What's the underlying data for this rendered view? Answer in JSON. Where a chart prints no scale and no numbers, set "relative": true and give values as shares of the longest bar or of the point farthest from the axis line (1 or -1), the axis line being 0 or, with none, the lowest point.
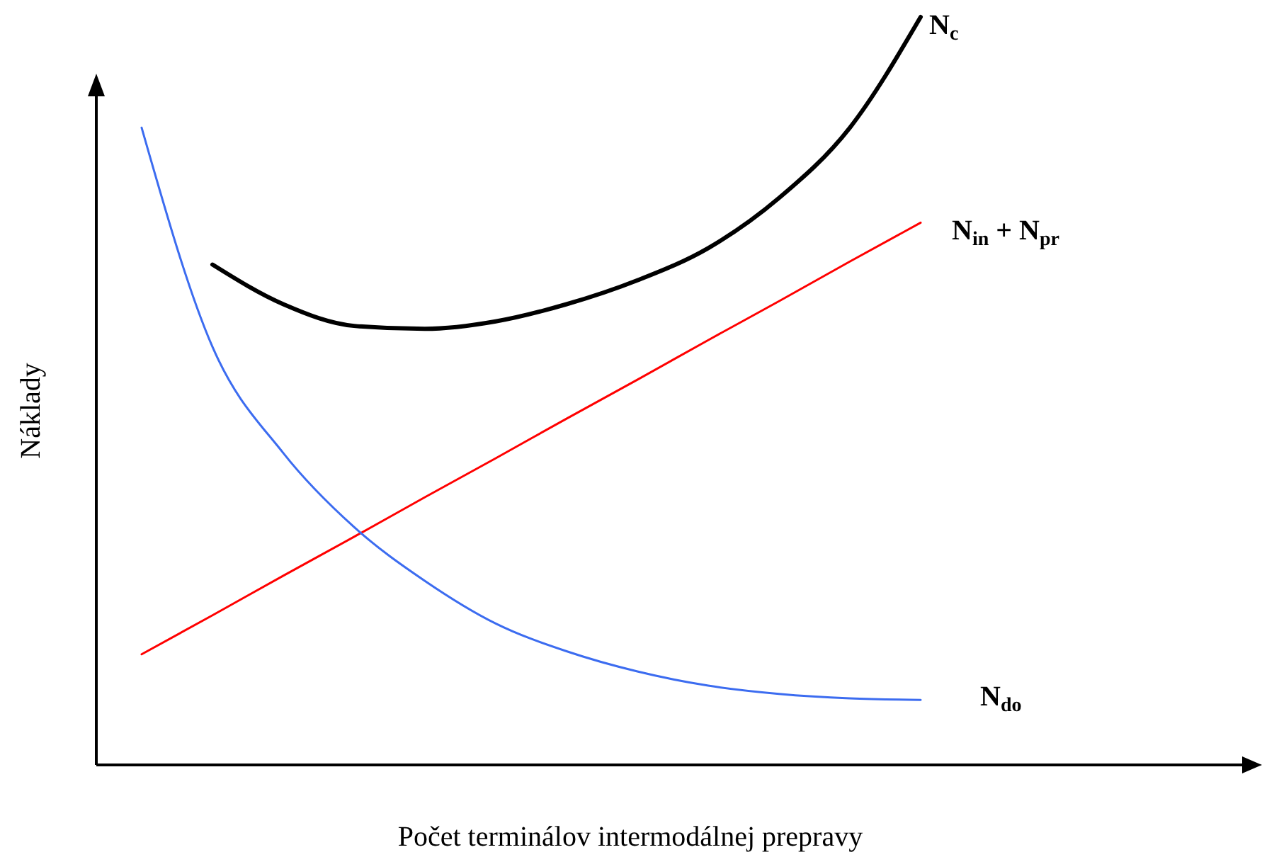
{
  "chart_data": {
    "type": "line",
    "relative": true,
    "xlabel": "Počet terminálov intermodálnej prepravy",
    "ylabel": "Náklady",
    "legend": false,
    "marker": "none",
    "line_style": "solid",
    "categories": [
      null,
      null,
      null,
      null,
      null,
      null,
      null,
      null,
      null,
      null,
      null,
      null
    ],
    "series": [
      {
        "name": "N$_{c}$",
        "color": "#000000",
        "values": [
          null,
          0.669,
          0.616,
          0.587,
          0.583,
          0.593,
          0.616,
          0.648,
          0.691,
          0.758,
          0.852,
          1
        ]
      },
      {
        "name": "N$_{in}$ + N$_{pr}$",
        "color": "#ff0000",
        "values": [
          0.148,
          0.2,
          0.253,
          0.305,
          0.358,
          0.41,
          0.463,
          0.515,
          0.568,
          0.62,
          0.673,
          0.725
        ]
      },
      {
        "name": "N$_{do}$",
        "color": "#3c6cf0",
        "values": [
          0.852,
          0.559,
          0.417,
          0.318,
          0.246,
          0.189,
          0.152,
          0.125,
          0.106,
          0.095,
          0.089,
          0.087
        ]
      }
    ]
  }
}
